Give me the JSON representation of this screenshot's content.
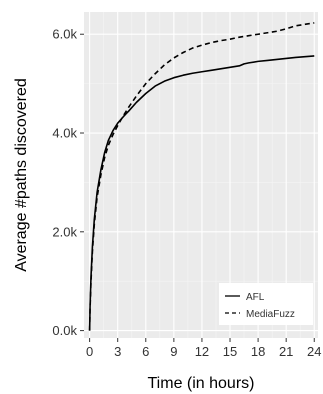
{
  "chart_data": {
    "type": "line",
    "title": "",
    "xlabel": "Time (in hours)",
    "ylabel": "Average #paths discovered",
    "xlim": [
      -0.6,
      24.4
    ],
    "ylim": [
      -150,
      6450
    ],
    "x_ticks": [
      0,
      3,
      6,
      9,
      12,
      15,
      18,
      21,
      24
    ],
    "x_tick_labels": [
      "0",
      "3",
      "6",
      "9",
      "12",
      "15",
      "18",
      "21",
      "24"
    ],
    "y_ticks": [
      0,
      2000,
      4000,
      6000
    ],
    "y_tick_labels": [
      "0.0k",
      "2.0k",
      "4.0k",
      "6.0k"
    ],
    "grid": true,
    "background": "#ebebeb",
    "legend_position": "bottom-right",
    "series": [
      {
        "name": "AFL",
        "style": "solid",
        "color": "#000000",
        "x": [
          0,
          0.05,
          0.15,
          0.3,
          0.5,
          0.8,
          1.2,
          1.6,
          2.0,
          2.5,
          3.0,
          3.6,
          4.2,
          5.0,
          6.0,
          7.0,
          8.0,
          9.0,
          10.0,
          11.0,
          12.0,
          13.0,
          14.0,
          15.0,
          16.0,
          16.5,
          17.0,
          18.0,
          19.0,
          20.0,
          21.0,
          22.0,
          23.0,
          24.0
        ],
        "y": [
          0,
          500,
          1100,
          1700,
          2250,
          2800,
          3250,
          3600,
          3850,
          4050,
          4200,
          4330,
          4450,
          4620,
          4800,
          4950,
          5050,
          5120,
          5170,
          5210,
          5240,
          5270,
          5300,
          5330,
          5360,
          5400,
          5420,
          5450,
          5470,
          5490,
          5510,
          5530,
          5545,
          5560
        ]
      },
      {
        "name": "MediaFuzz",
        "style": "dashed",
        "color": "#000000",
        "x": [
          0,
          0.05,
          0.15,
          0.3,
          0.5,
          0.8,
          1.2,
          1.6,
          2.0,
          2.5,
          3.0,
          3.6,
          4.2,
          5.0,
          6.0,
          7.0,
          8.0,
          9.0,
          10.0,
          11.0,
          12.0,
          13.0,
          14.0,
          15.0,
          16.0,
          17.0,
          18.0,
          19.0,
          20.0,
          21.0,
          22.0,
          23.0,
          24.0
        ],
        "y": [
          0,
          450,
          1000,
          1600,
          2150,
          2700,
          3150,
          3500,
          3750,
          3970,
          4150,
          4350,
          4530,
          4750,
          5000,
          5200,
          5380,
          5520,
          5630,
          5720,
          5780,
          5830,
          5870,
          5900,
          5940,
          5970,
          6000,
          6030,
          6060,
          6110,
          6170,
          6200,
          6230
        ]
      }
    ]
  }
}
